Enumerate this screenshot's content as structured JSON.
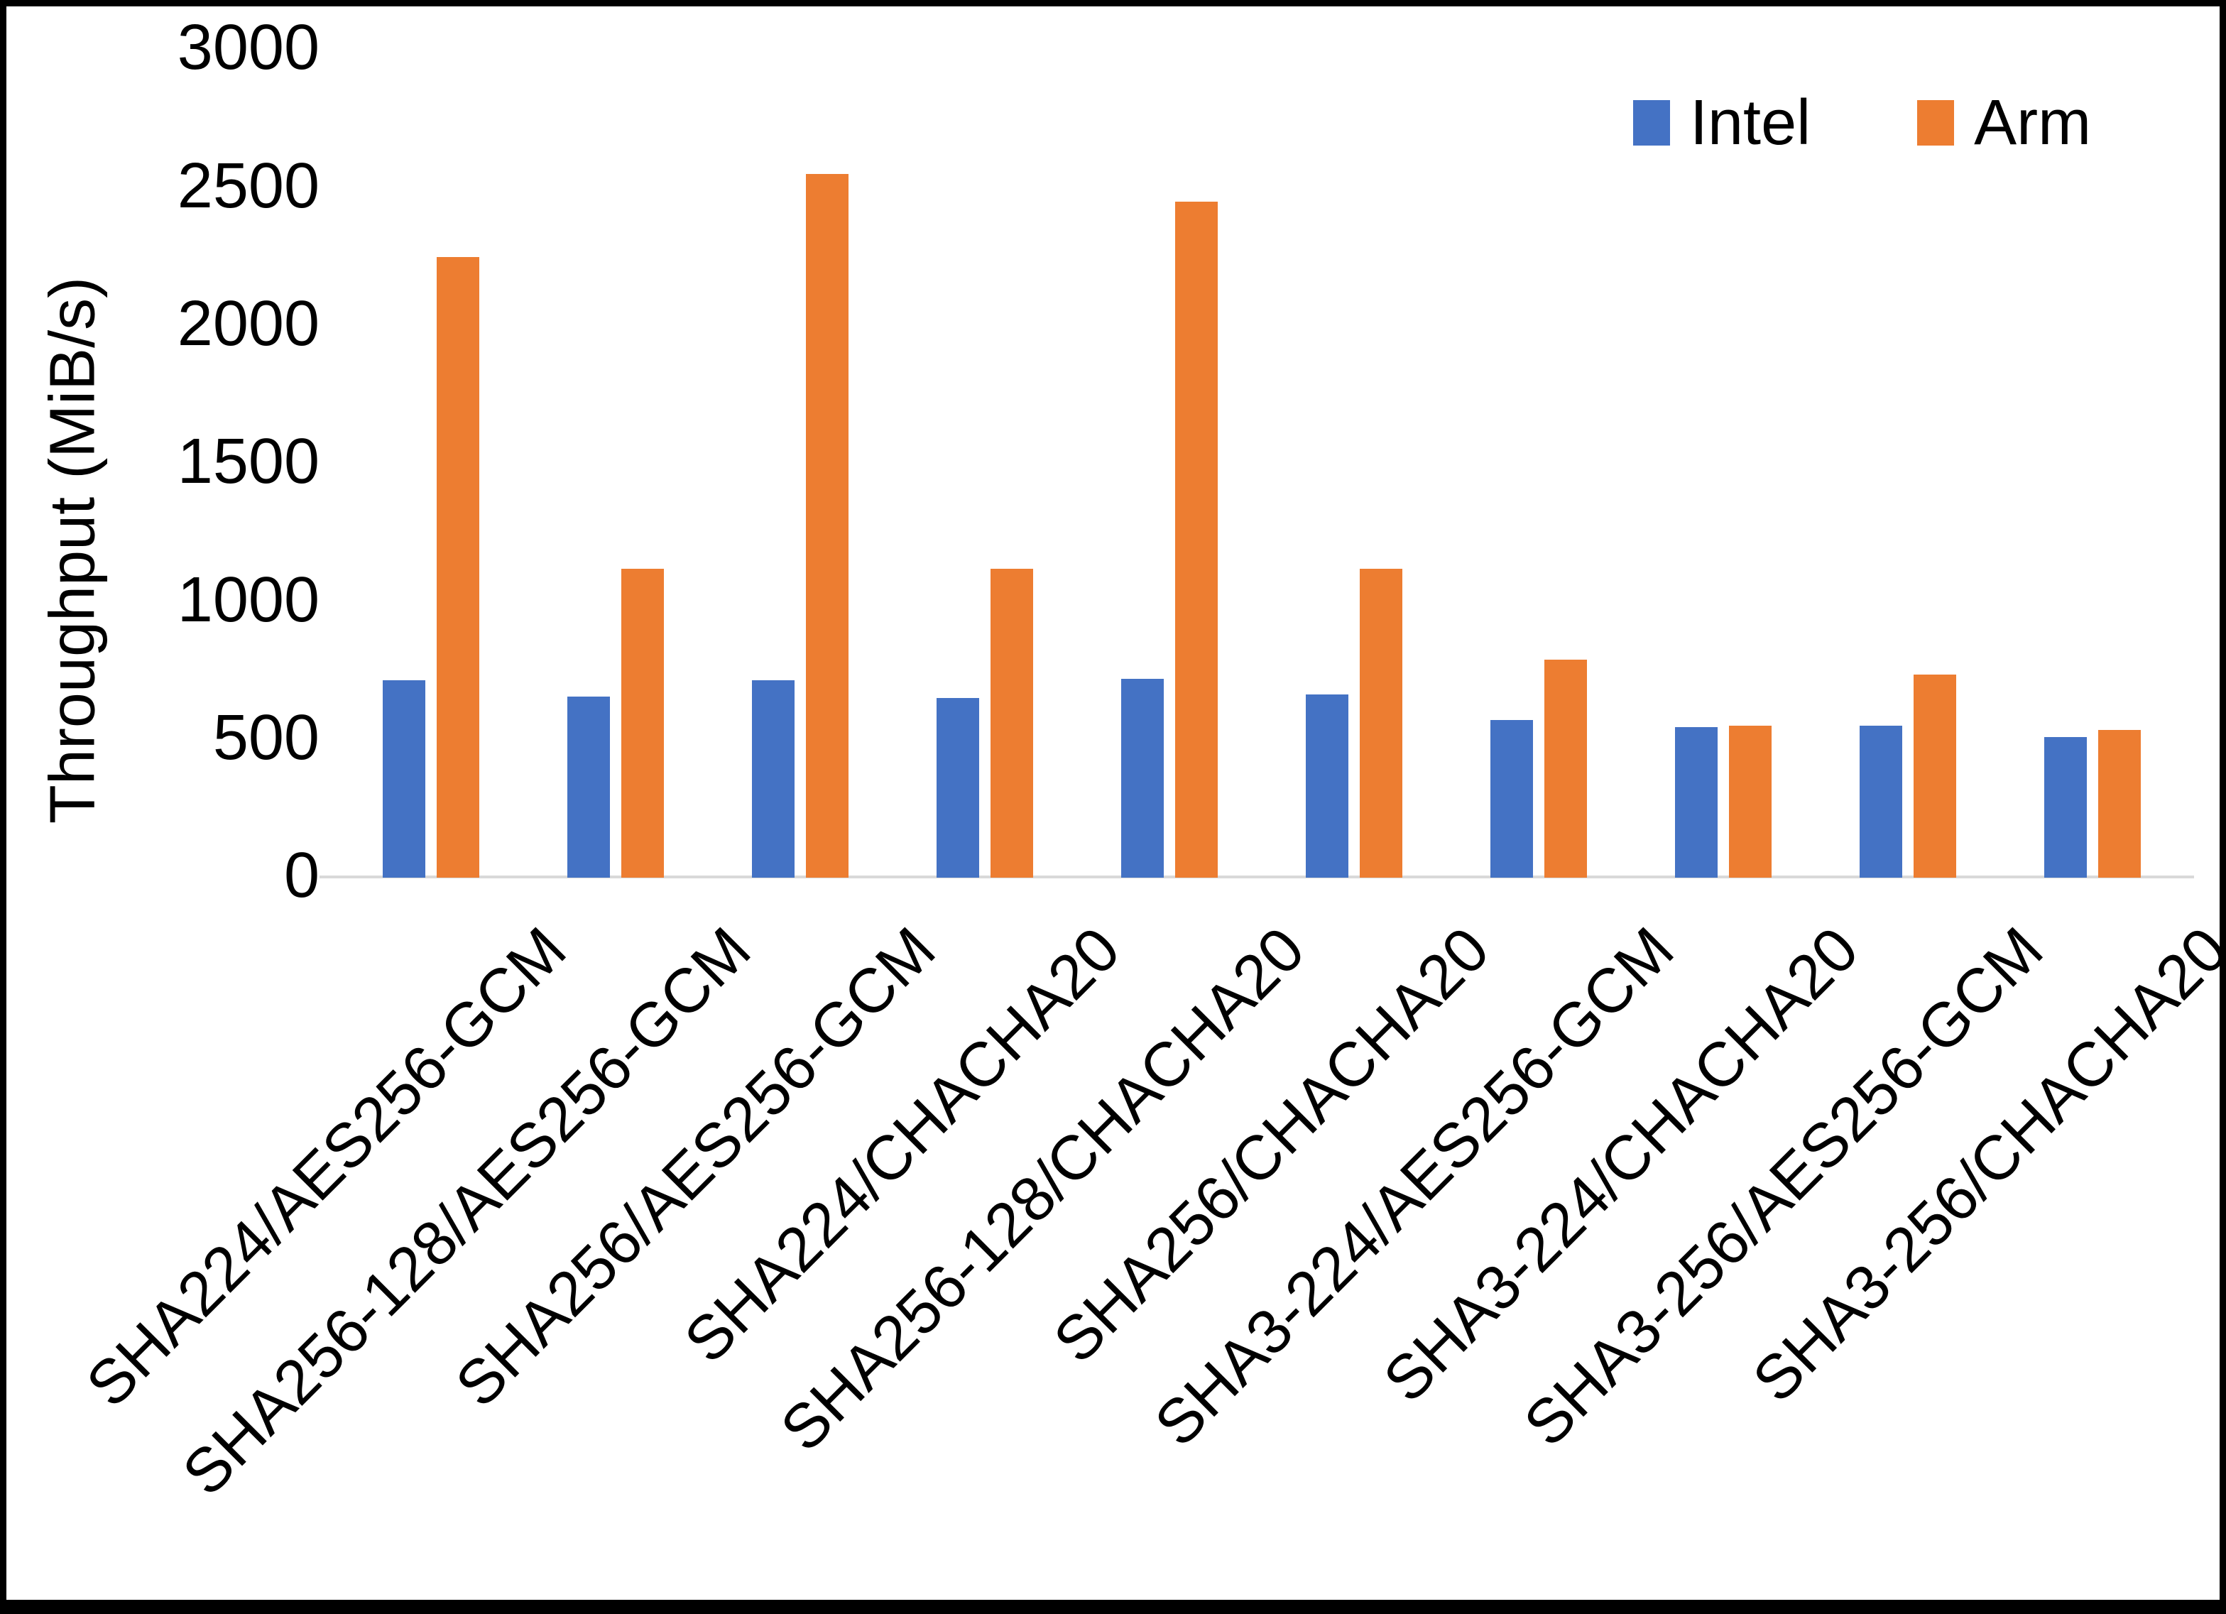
{
  "chart_data": {
    "type": "bar",
    "title": "",
    "xlabel": "",
    "ylabel": "Throughput (MiB/s)",
    "ylim": [
      0,
      3000
    ],
    "ytick_step": 500,
    "yticks": [
      0,
      500,
      1000,
      1500,
      2000,
      2500,
      3000
    ],
    "grid": false,
    "legend_position": "top-right",
    "categories": [
      "SHA224/AES256-GCM",
      "SHA256-128/AES256-GCM",
      "SHA256/AES256-GCM",
      "SHA224/CHACHA20",
      "SHA256-128/CHACHA20",
      "SHA256/CHACHA20",
      "SHA3-224/AES256-GCM",
      "SHA3-224/CHACHA20",
      "SHA3-256/AES256-GCM",
      "SHA3-256/CHACHA20"
    ],
    "series": [
      {
        "name": "Intel",
        "color": "#4472C4",
        "values": [
          715,
          655,
          715,
          650,
          720,
          665,
          570,
          545,
          550,
          510
        ]
      },
      {
        "name": "Arm",
        "color": "#ED7D31",
        "values": [
          2250,
          1120,
          2550,
          1120,
          2450,
          1120,
          790,
          550,
          735,
          535
        ]
      }
    ]
  },
  "colors": {
    "background": "#FFFFFF",
    "border": "#000000",
    "axis_line": "#D9D9D9",
    "text": "#000000"
  }
}
